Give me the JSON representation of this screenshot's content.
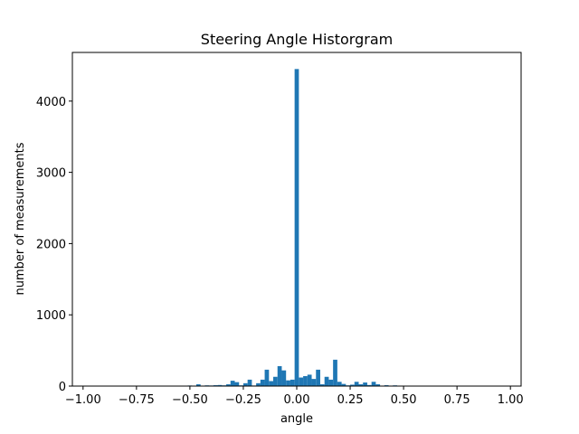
{
  "chart_data": {
    "type": "bar",
    "title": "Steering Angle Historgram",
    "xlabel": "angle",
    "ylabel": "number of measurements",
    "xlim": [
      -1.05,
      1.05
    ],
    "ylim": [
      0,
      4683
    ],
    "xticks": [
      -1.0,
      -0.75,
      -0.5,
      -0.25,
      0.0,
      0.25,
      0.5,
      0.75,
      1.0
    ],
    "xtick_labels": [
      "−1.00",
      "−0.75",
      "−0.50",
      "−0.25",
      "0.00",
      "0.25",
      "0.50",
      "0.75",
      "1.00"
    ],
    "yticks": [
      0,
      1000,
      2000,
      3000,
      4000
    ],
    "ytick_labels": [
      "0",
      "1000",
      "2000",
      "3000",
      "4000"
    ],
    "bar_color": "#1f77b4",
    "bin_width": 0.02,
    "grid": false,
    "legend": "none",
    "bins": [
      {
        "x": -0.5,
        "count": 8
      },
      {
        "x": -0.48,
        "count": 3
      },
      {
        "x": -0.46,
        "count": 25
      },
      {
        "x": -0.44,
        "count": 6
      },
      {
        "x": -0.42,
        "count": 10
      },
      {
        "x": -0.4,
        "count": 8
      },
      {
        "x": -0.38,
        "count": 12
      },
      {
        "x": -0.36,
        "count": 15
      },
      {
        "x": -0.34,
        "count": 10
      },
      {
        "x": -0.32,
        "count": 25
      },
      {
        "x": -0.3,
        "count": 75
      },
      {
        "x": -0.28,
        "count": 55
      },
      {
        "x": -0.26,
        "count": 10
      },
      {
        "x": -0.24,
        "count": 40
      },
      {
        "x": -0.22,
        "count": 90
      },
      {
        "x": -0.2,
        "count": 8
      },
      {
        "x": -0.18,
        "count": 40
      },
      {
        "x": -0.16,
        "count": 90
      },
      {
        "x": -0.14,
        "count": 230
      },
      {
        "x": -0.12,
        "count": 70
      },
      {
        "x": -0.1,
        "count": 130
      },
      {
        "x": -0.08,
        "count": 280
      },
      {
        "x": -0.06,
        "count": 220
      },
      {
        "x": -0.04,
        "count": 80
      },
      {
        "x": -0.02,
        "count": 90
      },
      {
        "x": 0.0,
        "count": 4450
      },
      {
        "x": 0.02,
        "count": 120
      },
      {
        "x": 0.04,
        "count": 140
      },
      {
        "x": 0.06,
        "count": 160
      },
      {
        "x": 0.08,
        "count": 100
      },
      {
        "x": 0.1,
        "count": 230
      },
      {
        "x": 0.12,
        "count": 25
      },
      {
        "x": 0.14,
        "count": 130
      },
      {
        "x": 0.16,
        "count": 90
      },
      {
        "x": 0.18,
        "count": 370
      },
      {
        "x": 0.2,
        "count": 60
      },
      {
        "x": 0.22,
        "count": 30
      },
      {
        "x": 0.24,
        "count": 10
      },
      {
        "x": 0.26,
        "count": 20
      },
      {
        "x": 0.28,
        "count": 60
      },
      {
        "x": 0.3,
        "count": 25
      },
      {
        "x": 0.32,
        "count": 50
      },
      {
        "x": 0.34,
        "count": 15
      },
      {
        "x": 0.36,
        "count": 60
      },
      {
        "x": 0.38,
        "count": 25
      },
      {
        "x": 0.4,
        "count": 6
      },
      {
        "x": 0.42,
        "count": 12
      },
      {
        "x": 0.44,
        "count": 4
      },
      {
        "x": 0.46,
        "count": 10
      },
      {
        "x": 0.48,
        "count": 3
      }
    ]
  }
}
